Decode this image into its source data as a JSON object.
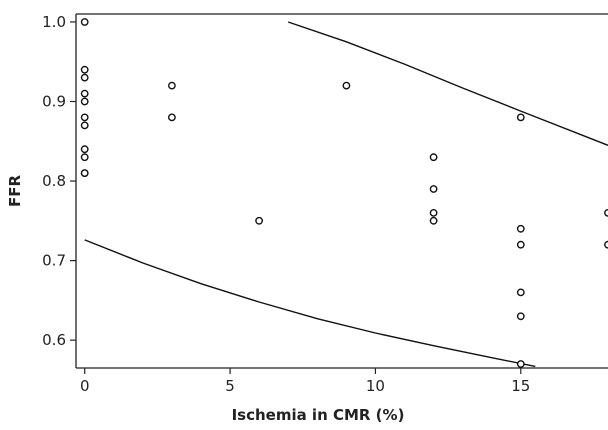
{
  "chart_data": {
    "type": "scatter",
    "title": "",
    "xlabel": "Ischemia in CMR (%)",
    "ylabel": "FFR",
    "xlim": [
      -0.3,
      18
    ],
    "ylim": [
      0.565,
      1.01
    ],
    "xticks": [
      0,
      5,
      10,
      15
    ],
    "xtick_labels": [
      "0",
      "5",
      "10",
      "15"
    ],
    "yticks": [
      0.6,
      0.7,
      0.8,
      0.9,
      1.0
    ],
    "ytick_labels": [
      "0.6",
      "0.7",
      "0.8",
      "0.9",
      "1.0"
    ],
    "grid": false,
    "legend": "none",
    "series": [
      {
        "kind": "points",
        "x": [
          0,
          0,
          0,
          0,
          0,
          0,
          0,
          0,
          0,
          0,
          0,
          3,
          3,
          6,
          9,
          12,
          12,
          12,
          12,
          15,
          15,
          15,
          15,
          15,
          15,
          18,
          18
        ],
        "y": [
          1.0,
          0.94,
          0.93,
          0.91,
          0.9,
          0.88,
          0.87,
          0.84,
          0.83,
          0.81,
          0.81,
          0.92,
          0.88,
          0.75,
          0.92,
          0.83,
          0.79,
          0.76,
          0.75,
          0.88,
          0.74,
          0.72,
          0.66,
          0.63,
          0.57,
          0.76,
          0.72
        ],
        "marker": "open-circle",
        "color": "#111111"
      },
      {
        "kind": "curve",
        "x": [
          7,
          9,
          11,
          13,
          15,
          18
        ],
        "y": [
          1.0,
          0.975,
          0.947,
          0.917,
          0.888,
          0.845
        ],
        "color": "#111111"
      },
      {
        "kind": "curve",
        "x": [
          0,
          2,
          4,
          6,
          8,
          10,
          12,
          14,
          15.5
        ],
        "y": [
          0.726,
          0.697,
          0.671,
          0.648,
          0.627,
          0.609,
          0.593,
          0.578,
          0.567
        ],
        "color": "#111111"
      }
    ]
  }
}
